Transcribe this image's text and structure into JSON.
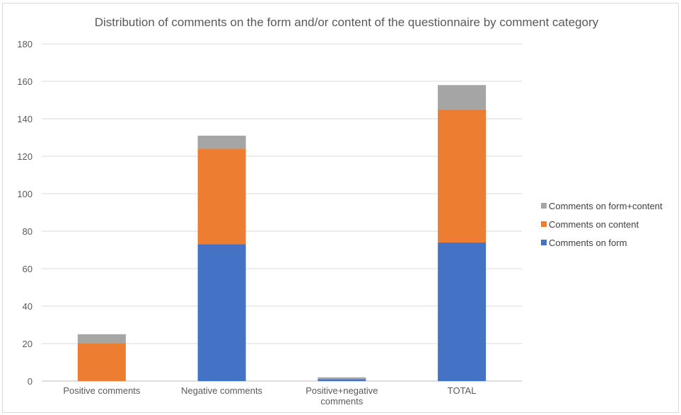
{
  "chart_data": {
    "type": "bar",
    "stacked": true,
    "title": "Distribution of comments on the form and/or content of the questionnaire by comment category",
    "xlabel": "",
    "ylabel": "",
    "ylim": [
      0,
      180
    ],
    "yticks": [
      0,
      20,
      40,
      60,
      80,
      100,
      120,
      140,
      160,
      180
    ],
    "grid": true,
    "legend_position": "right",
    "categories": [
      [
        "Positive comments"
      ],
      [
        "Negative comments"
      ],
      [
        "Positive+negative",
        "comments"
      ],
      [
        "TOTAL"
      ]
    ],
    "series": [
      {
        "name": "Comments on form",
        "color": "#4472c4",
        "values": [
          0,
          73,
          1,
          74
        ]
      },
      {
        "name": "Comments on content",
        "color": "#ed7d31",
        "values": [
          20,
          51,
          0,
          71
        ]
      },
      {
        "name": "Comments on form+content",
        "color": "#a5a5a5",
        "values": [
          5,
          7,
          1,
          13
        ]
      }
    ],
    "legend_order": [
      2,
      1,
      0
    ]
  }
}
